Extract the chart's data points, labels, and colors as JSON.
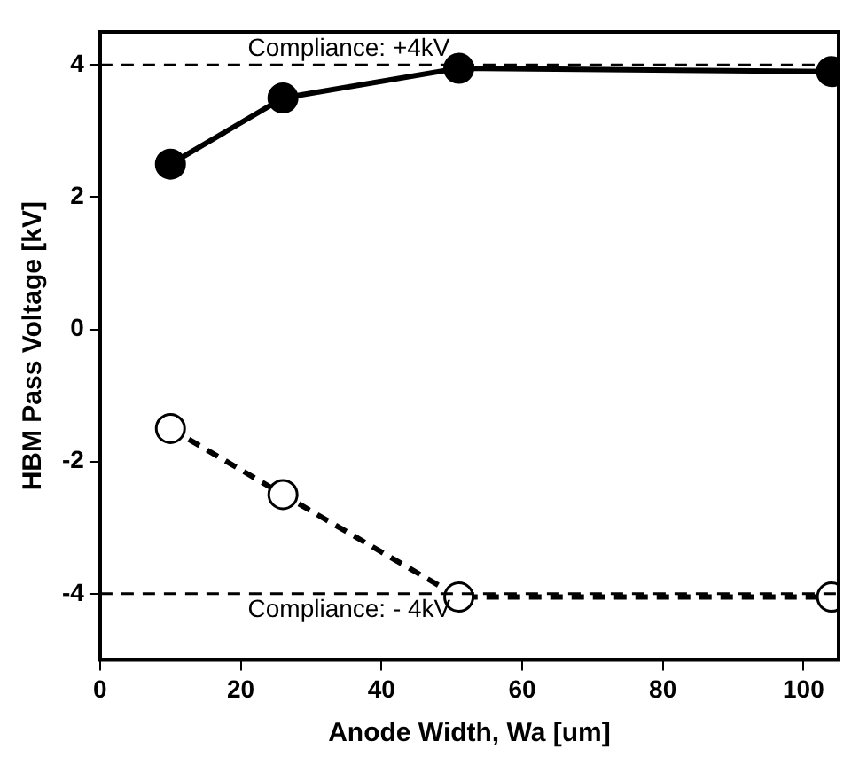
{
  "chart_data": {
    "type": "line",
    "xlabel": "Anode Width, Wa [um]",
    "ylabel": "HBM Pass Voltage [kV]",
    "xlim": [
      0,
      105
    ],
    "xticks": [
      0,
      20,
      40,
      60,
      80,
      100
    ],
    "ylim": [
      -5,
      4.5
    ],
    "yticks": [
      -4,
      -2,
      0,
      2,
      4
    ],
    "x": [
      10,
      26,
      51,
      104
    ],
    "series": [
      {
        "color": "#000000",
        "values": [
          2.5,
          3.5,
          3.95,
          3.9
        ],
        "line_style": "solid"
      },
      {
        "color": "#000000",
        "values": [
          -1.5,
          -2.5,
          -4.05,
          -4.05
        ],
        "line_style": "dashed"
      }
    ],
    "ref_lines": [
      {
        "axis": "y",
        "value": 4,
        "label": "Compliance: +4kV",
        "line_style": "dashed",
        "color": "#000000"
      },
      {
        "axis": "y",
        "value": -4,
        "label": "Compliance: - 4kV",
        "line_style": "dashed",
        "color": "#000000"
      }
    ],
    "marker": "circle",
    "grid": false,
    "legend": false
  }
}
